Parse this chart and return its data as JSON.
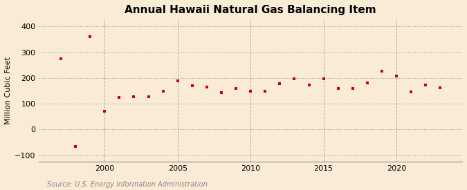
{
  "title": "Annual Hawaii Natural Gas Balancing Item",
  "ylabel": "Million Cubic Feet",
  "source": "Source: U.S. Energy Information Administration",
  "background_color": "#faebd7",
  "plot_background_color": "#faebd7",
  "marker_color": "#cc0000",
  "grid_color_h": "#999999",
  "grid_color_v": "#aaaaaa",
  "years": [
    1997,
    1998,
    1999,
    2000,
    2001,
    2002,
    2003,
    2004,
    2005,
    2006,
    2007,
    2008,
    2009,
    2010,
    2011,
    2012,
    2013,
    2014,
    2015,
    2016,
    2017,
    2018,
    2019,
    2020,
    2021,
    2022,
    2023
  ],
  "values": [
    275,
    -65,
    362,
    72,
    125,
    128,
    128,
    150,
    190,
    170,
    165,
    143,
    160,
    150,
    150,
    178,
    198,
    172,
    197,
    160,
    160,
    182,
    226,
    207,
    145,
    172,
    162
  ],
  "ylim": [
    -125,
    430
  ],
  "yticks": [
    -100,
    0,
    100,
    200,
    300,
    400
  ],
  "xlim": [
    1995.5,
    2024.5
  ],
  "xticks": [
    2000,
    2005,
    2010,
    2015,
    2020
  ],
  "title_fontsize": 11,
  "label_fontsize": 8,
  "tick_fontsize": 8,
  "source_fontsize": 7
}
